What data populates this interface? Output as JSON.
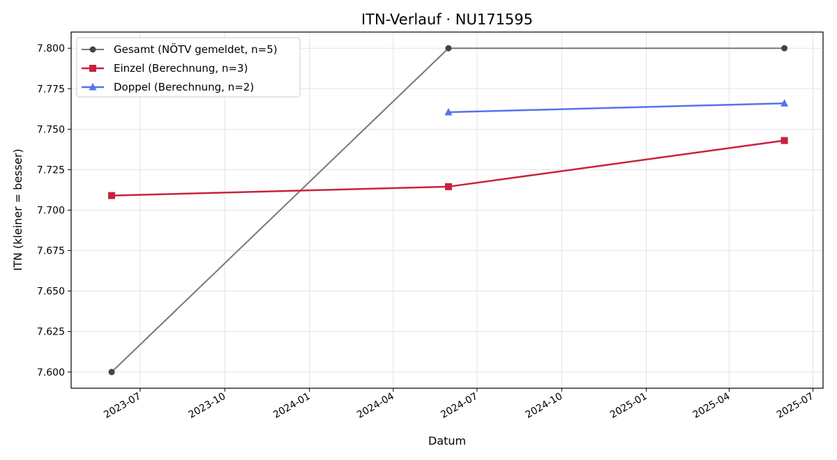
{
  "chart_data": {
    "type": "line",
    "title": "ITN-Verlauf · NU171595",
    "xlabel": "Datum",
    "ylabel": "ITN  (kleiner = besser)",
    "x_tick_labels": [
      "2023-07",
      "2023-10",
      "2024-01",
      "2024-04",
      "2024-07",
      "2024-10",
      "2025-01",
      "2025-04",
      "2025-07"
    ],
    "y_tick_labels": [
      "7.600",
      "7.625",
      "7.650",
      "7.675",
      "7.700",
      "7.725",
      "7.750",
      "7.775",
      "7.800"
    ],
    "ylim": [
      7.59,
      7.81
    ],
    "xlim": [
      "2023-04-17",
      "2025-07-12"
    ],
    "grid": true,
    "legend_position": "top-left",
    "series": [
      {
        "name": "Gesamt (NÖTV gemeldet, n=5)",
        "color": "#777777",
        "marker_color": "#444444",
        "marker": "circle",
        "points": [
          {
            "x": "2023-05-31",
            "y": 7.6
          },
          {
            "x": "2024-05-31",
            "y": 7.8
          },
          {
            "x": "2025-05-31",
            "y": 7.8
          }
        ]
      },
      {
        "name": "Einzel (Berechnung, n=3)",
        "color": "#c8213e",
        "marker_color": "#c8213e",
        "marker": "square",
        "points": [
          {
            "x": "2023-05-31",
            "y": 7.709
          },
          {
            "x": "2024-05-31",
            "y": 7.7145
          },
          {
            "x": "2025-05-31",
            "y": 7.743
          }
        ]
      },
      {
        "name": "Doppel (Berechnung, n=2)",
        "color": "#5572ee",
        "marker_color": "#5572ee",
        "marker": "triangle",
        "points": [
          {
            "x": "2024-05-31",
            "y": 7.7605
          },
          {
            "x": "2025-05-31",
            "y": 7.766
          }
        ]
      }
    ]
  }
}
